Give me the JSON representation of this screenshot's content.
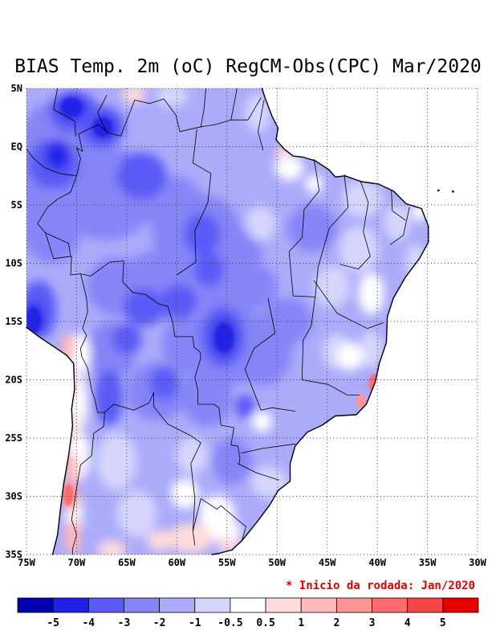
{
  "title": "BIAS Temp. 2m (oC) RegCM-Obs(CPC) Mar/2020",
  "annotation": {
    "text": "* Inicio da rodada: Jan/2020",
    "color": "#dd0000"
  },
  "chart_data": {
    "type": "heatmap",
    "title": "BIAS Temp. 2m (oC) RegCM-Obs(CPC) Mar/2020",
    "units": "oC",
    "lon_range_deg": [
      -75,
      -30
    ],
    "lat_range_deg": [
      -35,
      5
    ],
    "grid": "dotted 5-degree graticule",
    "legend_position": "bottom",
    "x_ticks": [
      {
        "label": "75W",
        "lon": -75
      },
      {
        "label": "70W",
        "lon": -70
      },
      {
        "label": "65W",
        "lon": -65
      },
      {
        "label": "60W",
        "lon": -60
      },
      {
        "label": "55W",
        "lon": -55
      },
      {
        "label": "50W",
        "lon": -50
      },
      {
        "label": "45W",
        "lon": -45
      },
      {
        "label": "40W",
        "lon": -40
      },
      {
        "label": "35W",
        "lon": -35
      },
      {
        "label": "30W",
        "lon": -30
      }
    ],
    "y_ticks": [
      {
        "label": "5N",
        "lat": 5
      },
      {
        "label": "EQ",
        "lat": 0
      },
      {
        "label": "5S",
        "lat": -5
      },
      {
        "label": "10S",
        "lat": -10
      },
      {
        "label": "15S",
        "lat": -15
      },
      {
        "label": "20S",
        "lat": -20
      },
      {
        "label": "25S",
        "lat": -25
      },
      {
        "label": "30S",
        "lat": -30
      },
      {
        "label": "35S",
        "lat": -35
      }
    ],
    "colorbar": {
      "levels": [
        -5,
        -4,
        -3,
        -2,
        -1,
        -0.5,
        0.5,
        1,
        2,
        3,
        4,
        5
      ],
      "cell_colors": [
        "#0000b0",
        "#2020e8",
        "#5a5af6",
        "#8585f8",
        "#ababfa",
        "#d6d6fd",
        "#ffffff",
        "#ffdcdc",
        "#ffb9b9",
        "#ff9494",
        "#ff6b6b",
        "#f74545",
        "#e80000"
      ],
      "boundary_labels": [
        "-5",
        "-4",
        "-3",
        "-2",
        "-1",
        "-0.5",
        "0.5",
        "1",
        "2",
        "3",
        "4",
        "5"
      ]
    },
    "base_bias": -1.5,
    "points_format": "[lon_deg, lat_deg, rx_deg, ry_deg, bias_oC]",
    "points": [
      [
        -71.5,
        1.0,
        4,
        3,
        -2.5
      ],
      [
        -74.5,
        -3,
        2,
        3,
        -2.5
      ],
      [
        -67,
        -4,
        5,
        4,
        -2.5
      ],
      [
        -72.5,
        -7,
        3,
        3,
        -2.5
      ],
      [
        -60.5,
        -5,
        3,
        2.5,
        -2.5
      ],
      [
        -58,
        -7.5,
        4.5,
        3.5,
        -2.5
      ],
      [
        -53.5,
        -9,
        2,
        2,
        -2.5
      ],
      [
        -46.5,
        -7,
        2.5,
        2,
        -2.5
      ],
      [
        -62,
        -12,
        4,
        3,
        -2.5
      ],
      [
        -66,
        -12,
        3,
        2.5,
        -2.5
      ],
      [
        -56,
        -12.5,
        3,
        2.5,
        -2.5
      ],
      [
        -52.5,
        -12,
        2.5,
        2,
        -2.5
      ],
      [
        -49,
        -15,
        2.5,
        2,
        -2.5
      ],
      [
        -55,
        -17,
        4.5,
        3.5,
        -2.5
      ],
      [
        -51.5,
        -17.5,
        3,
        3,
        -2.5
      ],
      [
        -59,
        -17,
        2.5,
        2.5,
        -2.5
      ],
      [
        -66.5,
        -17.5,
        2.5,
        2.5,
        -2.5
      ],
      [
        -62,
        -21,
        3,
        2.5,
        -2.5
      ],
      [
        -57,
        -21.5,
        2.5,
        2.5,
        -2.5
      ],
      [
        -54.5,
        -27,
        2,
        2,
        -2.5
      ],
      [
        -70.3,
        3.0,
        2.5,
        1.8,
        -3.5
      ],
      [
        -67.5,
        1.7,
        2.3,
        1.8,
        -3.5
      ],
      [
        -72.3,
        -1.5,
        2.5,
        2.2,
        -3.5
      ],
      [
        -63.5,
        -2.5,
        2.5,
        2,
        -3.5
      ],
      [
        -57.5,
        -7.5,
        1.8,
        1.8,
        -3.5
      ],
      [
        -56.8,
        -10.5,
        1.5,
        1.5,
        -3.5
      ],
      [
        -73.8,
        -14,
        1.8,
        2.5,
        -3.5
      ],
      [
        -63.3,
        -13.8,
        2,
        1.6,
        -3.5
      ],
      [
        -59.8,
        -13.3,
        1.8,
        1.5,
        -3.5
      ],
      [
        -65,
        -16.5,
        1.5,
        1.3,
        -3.5
      ],
      [
        -55.4,
        -16.3,
        2.2,
        2.6,
        -3.5
      ],
      [
        -66.8,
        -21.5,
        1.4,
        2.4,
        -3.5
      ],
      [
        -61.3,
        -20.3,
        1.4,
        1.4,
        -3.5
      ],
      [
        -53.2,
        -22.3,
        1,
        1,
        -3.5
      ],
      [
        -70.5,
        3.3,
        1.4,
        1.0,
        -4.5
      ],
      [
        -67.3,
        1.6,
        1.2,
        1.0,
        -4.5
      ],
      [
        -71.9,
        -0.8,
        1.2,
        1.2,
        -4.5
      ],
      [
        -74.3,
        -14.8,
        1.0,
        1.4,
        -4.5
      ],
      [
        -55.3,
        -16.4,
        1.2,
        1.6,
        -4.5
      ],
      [
        -60.5,
        4.4,
        1.6,
        1.0,
        -0.75
      ],
      [
        -51.9,
        2.9,
        1.3,
        1.6,
        -0.75
      ],
      [
        -41.5,
        -4.5,
        2,
        1.6,
        -0.75
      ],
      [
        -38,
        -6.5,
        1.3,
        1.6,
        -0.75
      ],
      [
        -41.8,
        -8.8,
        2,
        2,
        -0.75
      ],
      [
        -36.2,
        -9.8,
        1.0,
        1.4,
        -0.75
      ],
      [
        -44.5,
        -12,
        1.8,
        1.8,
        -0.75
      ],
      [
        -44,
        -17.6,
        1.5,
        1.5,
        -0.75
      ],
      [
        -40.6,
        -17.4,
        1.2,
        1.6,
        -0.75
      ],
      [
        -51.6,
        -6.6,
        1.5,
        1.5,
        -0.75
      ],
      [
        -50.8,
        -28.8,
        1.8,
        1.4,
        -0.75
      ],
      [
        -64,
        -31.5,
        2,
        2,
        -0.75
      ],
      [
        -66,
        -27,
        2,
        2.5,
        -0.75
      ],
      [
        -58.5,
        -26.5,
        1.6,
        1.6,
        -0.75
      ],
      [
        -48.8,
        -1.8,
        1.4,
        1.1,
        0
      ],
      [
        -46.3,
        -3.2,
        0.9,
        0.8,
        0
      ],
      [
        -35.8,
        -5.6,
        0.8,
        0.8,
        0
      ],
      [
        -40.6,
        -12.6,
        1.3,
        1.8,
        0
      ],
      [
        -42.7,
        -18,
        1.3,
        1.2,
        0
      ],
      [
        -69.6,
        -17.8,
        1.0,
        1.8,
        0
      ],
      [
        -69.9,
        -22,
        1.0,
        2.5,
        0
      ],
      [
        -69.9,
        -26.5,
        1.2,
        2.2,
        0
      ],
      [
        -70.3,
        -31.5,
        0.9,
        2,
        0
      ],
      [
        -56,
        -31.5,
        1.8,
        1.6,
        0
      ],
      [
        -51.5,
        -23.6,
        1.0,
        0.9,
        0
      ],
      [
        -59.2,
        -29.8,
        1.4,
        1.3,
        0
      ],
      [
        -55.2,
        -33,
        1.6,
        1.0,
        0
      ],
      [
        -64.3,
        4.5,
        1.2,
        0.8,
        0.75
      ],
      [
        -49.4,
        -0.5,
        0.7,
        0.6,
        0.75
      ],
      [
        -70.9,
        -17.3,
        0.7,
        1.3,
        1.5
      ],
      [
        -70.8,
        -20.5,
        0.7,
        1.3,
        1.5
      ],
      [
        -70.4,
        -24,
        0.6,
        1.5,
        0.75
      ],
      [
        -70.5,
        -27.6,
        0.7,
        1.4,
        1.5
      ],
      [
        -70.7,
        -30,
        0.8,
        1.3,
        2.5
      ],
      [
        -70.4,
        -33.5,
        0.8,
        1.6,
        1.5
      ],
      [
        -58.6,
        -33.6,
        2.2,
        1.3,
        0.75
      ],
      [
        -61.6,
        -33.8,
        1.4,
        0.9,
        0.75
      ],
      [
        -54.8,
        -34.2,
        1.1,
        0.7,
        0.75
      ],
      [
        -66.5,
        -34.6,
        1.5,
        0.8,
        0.75
      ]
    ],
    "sharp_points": [
      [
        -40.3,
        -20.3,
        0.55,
        0.8,
        3
      ],
      [
        -41.6,
        -21.9,
        0.5,
        0.7,
        2
      ],
      [
        -70.8,
        -29.9,
        0.5,
        0.9,
        3
      ],
      [
        -55.3,
        -16.4,
        0.9,
        1.2,
        -4.5
      ],
      [
        -70.5,
        3.4,
        1.0,
        0.8,
        -4.5
      ],
      [
        -67.4,
        1.7,
        0.9,
        0.8,
        -4.5
      ],
      [
        -74.3,
        -14.9,
        0.7,
        1.1,
        -4.5
      ]
    ],
    "island_dots": [
      [
        -33.9,
        -3.75
      ],
      [
        -32.45,
        -3.85
      ]
    ]
  }
}
